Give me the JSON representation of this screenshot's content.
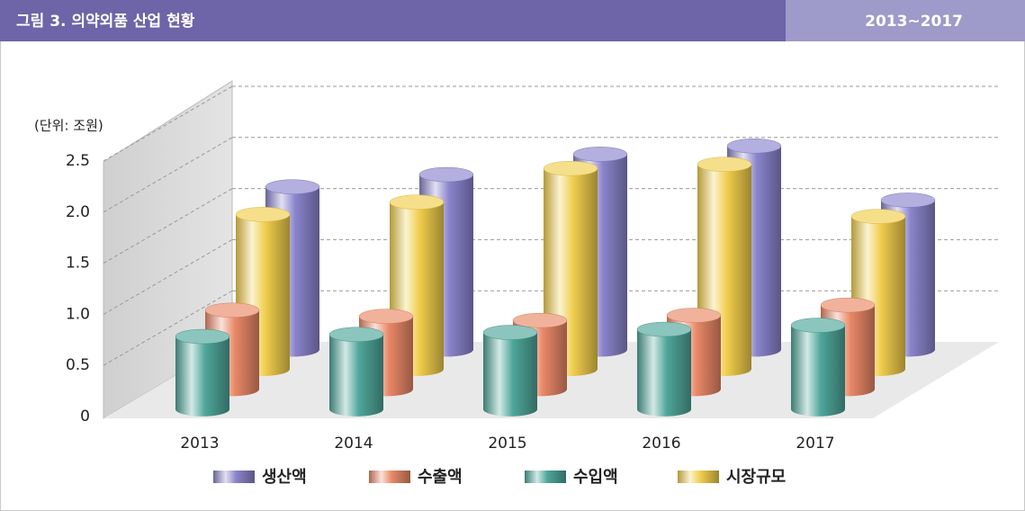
{
  "chart_data": {
    "type": "bar3d",
    "title": "그림 3. 의약외품 산업 현황",
    "subtitle": "2013~2017",
    "y_label": "(단위: 조원)",
    "categories": [
      "2013",
      "2014",
      "2015",
      "2016",
      "2017"
    ],
    "series": [
      {
        "name": "생산액",
        "color": "#8a84cc",
        "values": [
          1.59,
          1.71,
          1.91,
          1.99,
          1.46
        ]
      },
      {
        "name": "수출액",
        "color": "#e98867",
        "values": [
          0.77,
          0.71,
          0.67,
          0.72,
          0.82
        ]
      },
      {
        "name": "수입액",
        "color": "#4ea599",
        "values": [
          0.71,
          0.73,
          0.75,
          0.78,
          0.82
        ]
      },
      {
        "name": "시장규모",
        "color": "#f0cd4c",
        "values": [
          1.51,
          1.63,
          1.96,
          2.0,
          1.49
        ]
      }
    ],
    "ylim": [
      0,
      2.5
    ],
    "yticks": [
      0,
      0.5,
      {
        "value": 1,
        "label": "1.0"
      },
      1.5,
      {
        "value": 2,
        "label": "2.0"
      },
      2.5
    ],
    "grid": true
  }
}
